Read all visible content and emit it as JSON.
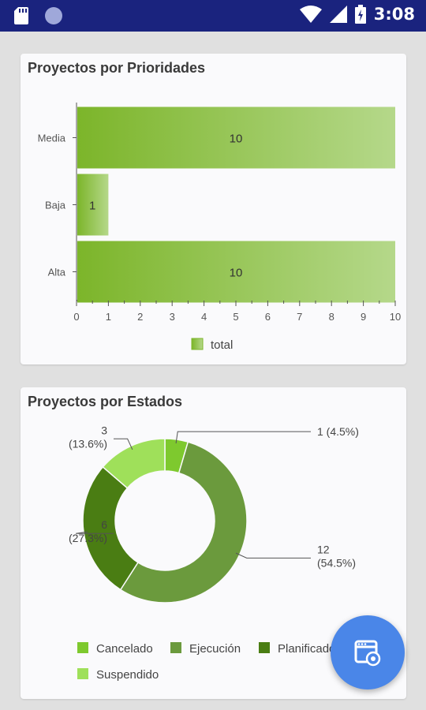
{
  "status_bar": {
    "time": "3:08",
    "icons": [
      "sd-card-icon",
      "circle-notification-icon",
      "wifi-icon",
      "signal-icon",
      "battery-icon"
    ]
  },
  "colors": {
    "status_bar": "#1a237e",
    "bar_dark": "#7cb52a",
    "bar_light": "#b5d88a",
    "cancelado": "#7ec92e",
    "ejecucion": "#6b9a3d",
    "planificado": "#4a7d13",
    "suspendido": "#9fe05a",
    "fab": "#4a86e8"
  },
  "cards": {
    "priorities": {
      "title": "Proyectos por Prioridades"
    },
    "states": {
      "title": "Proyectos por Estados"
    }
  },
  "chart_data": [
    {
      "type": "bar",
      "orientation": "horizontal",
      "title": "Proyectos por Prioridades",
      "categories": [
        "Media",
        "Baja",
        "Alta"
      ],
      "series": [
        {
          "name": "total",
          "values": [
            10,
            1,
            10
          ]
        }
      ],
      "value_labels": [
        "10",
        "1",
        "10"
      ],
      "xlim": [
        0,
        10
      ],
      "xticks": [
        "0",
        "1",
        "2",
        "3",
        "4",
        "5",
        "6",
        "7",
        "8",
        "9",
        "10"
      ],
      "legend": "bottom",
      "grid": false
    },
    {
      "type": "pie",
      "variant": "donut",
      "title": "Proyectos por Estados",
      "slices": [
        {
          "label": "Cancelado",
          "value": 1,
          "count_label": "1",
          "pct_label": "(4.5%)"
        },
        {
          "label": "Ejecución",
          "value": 12,
          "count_label": "12",
          "pct_label": "(54.5%)"
        },
        {
          "label": "Planificado",
          "value": 6,
          "count_label": "6",
          "pct_label": "(27.3%)"
        },
        {
          "label": "Suspendido",
          "value": 3,
          "count_label": "3",
          "pct_label": "(13.6%)"
        }
      ],
      "legend": "bottom"
    }
  ],
  "fab": {
    "icon": "web-settings-icon"
  }
}
